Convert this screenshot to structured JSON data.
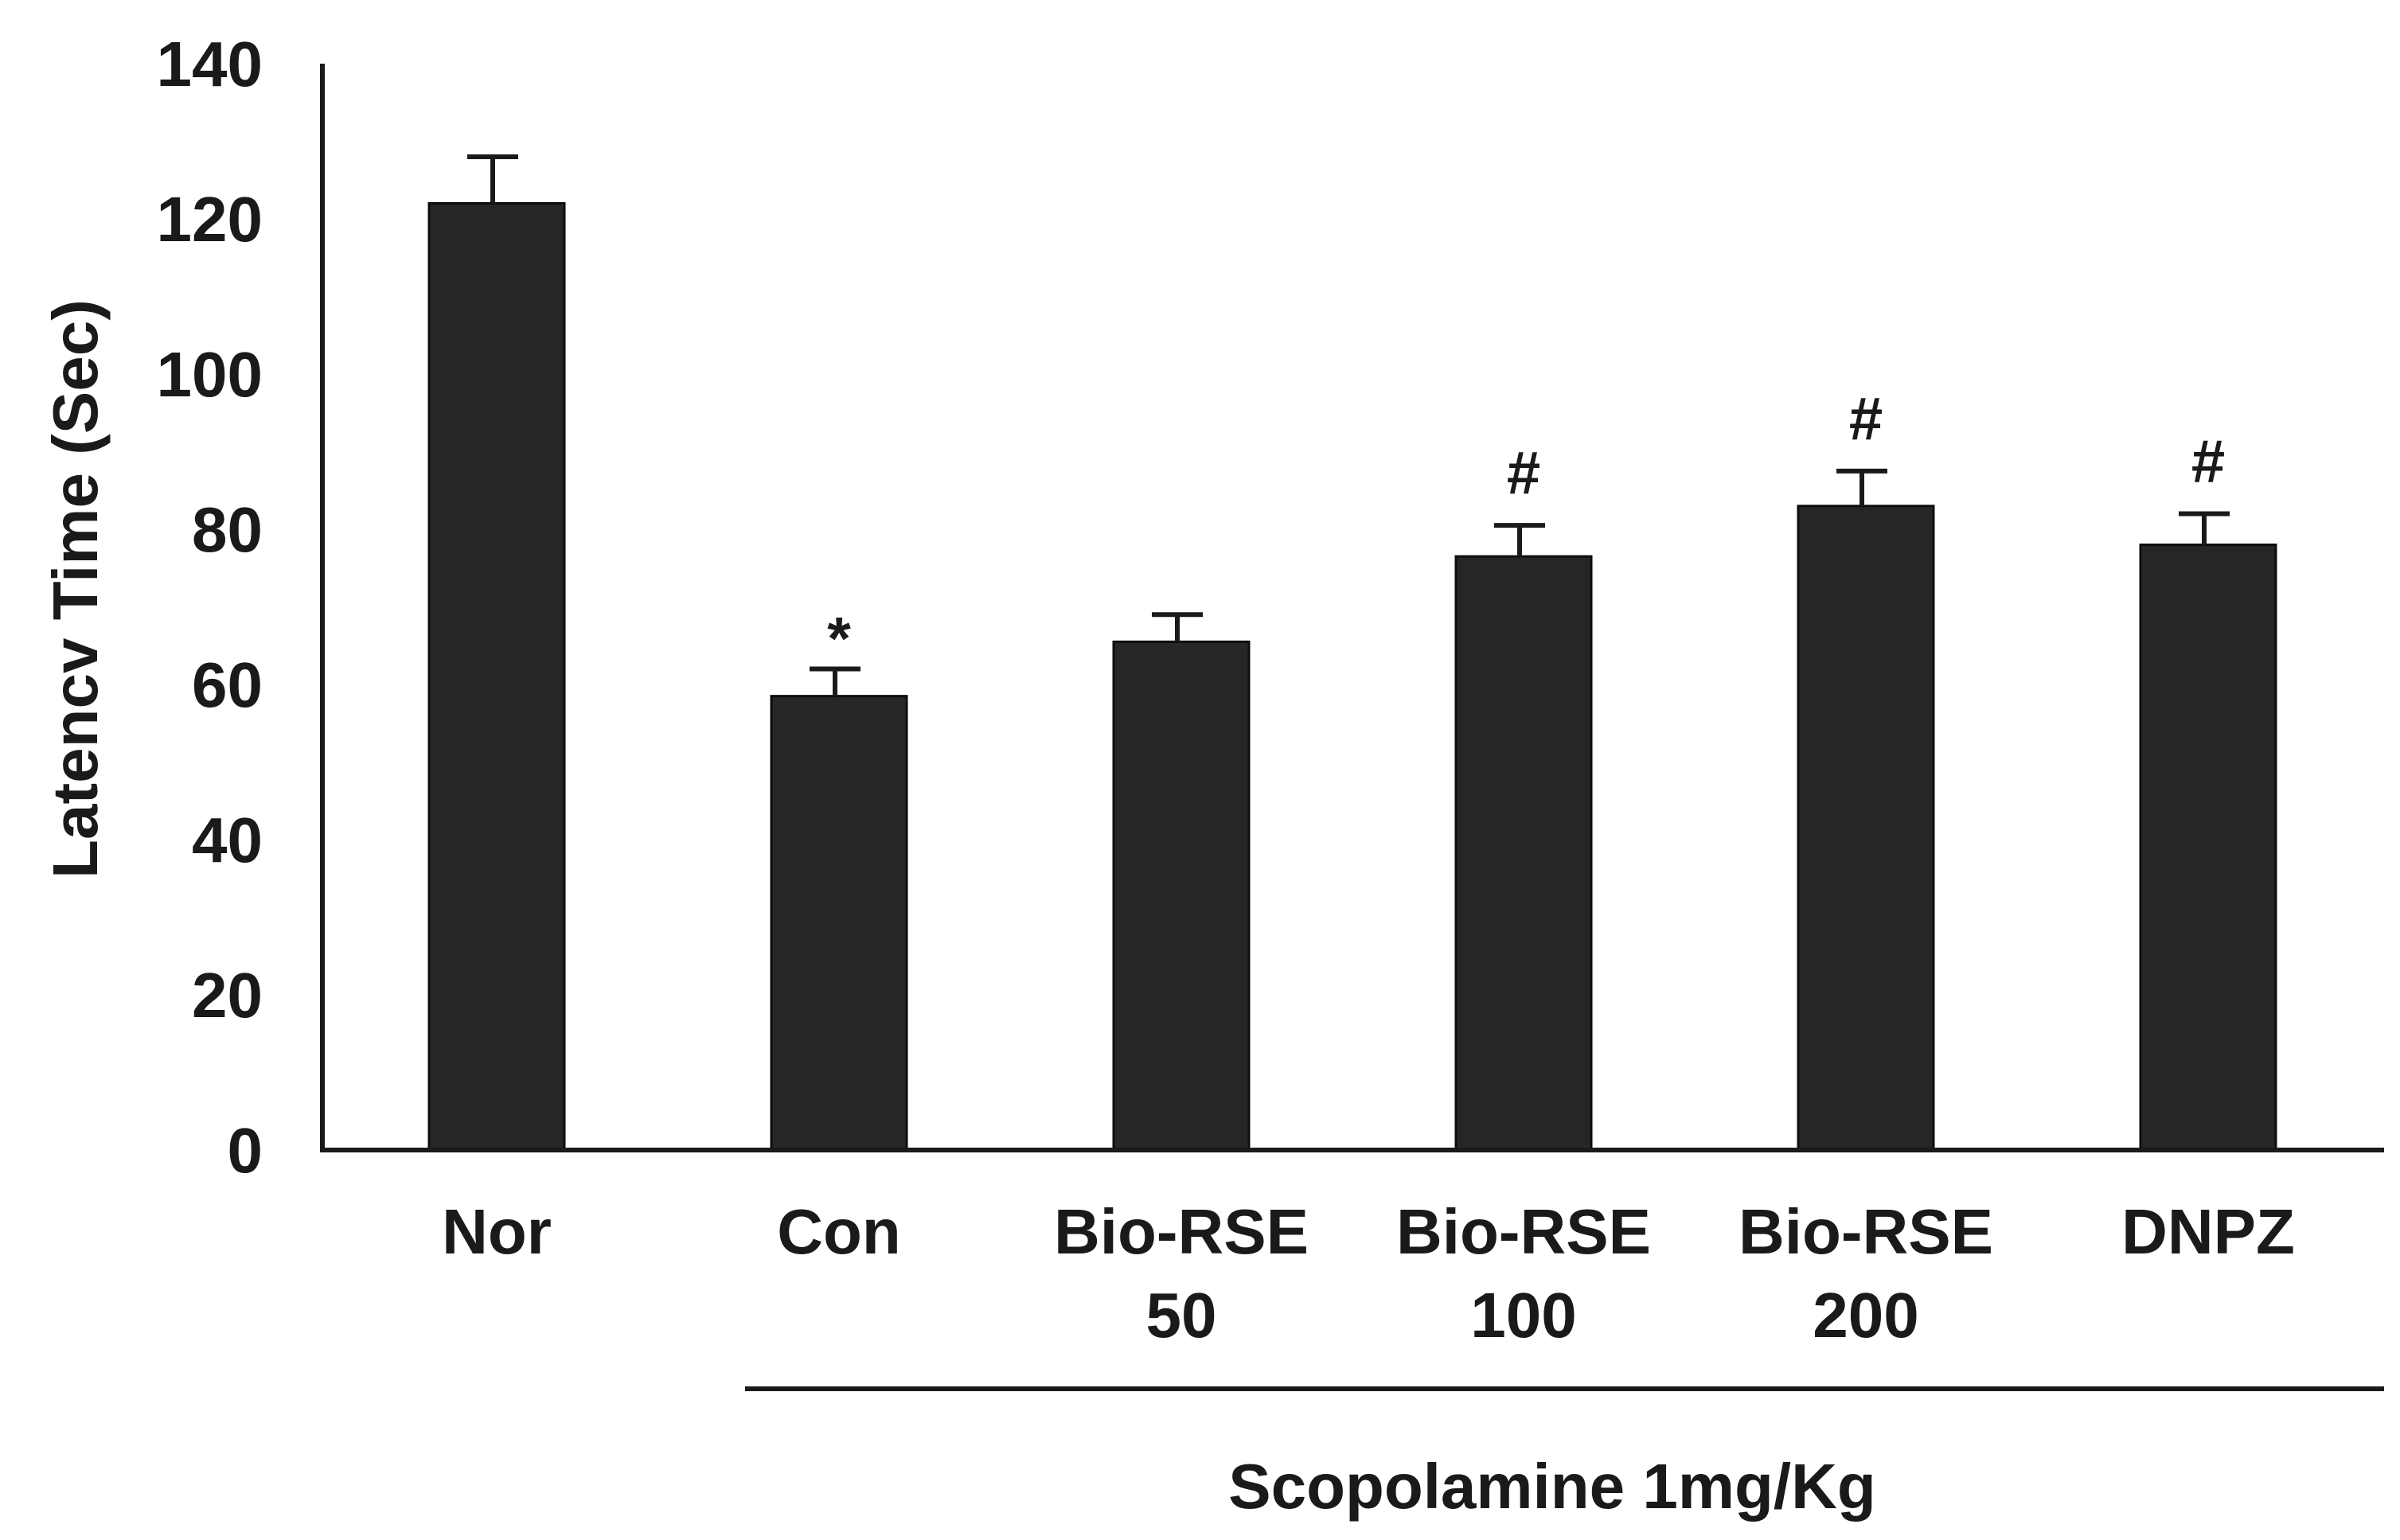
{
  "chart_data": {
    "type": "bar",
    "title": "",
    "xlabel": "",
    "ylabel": "Latencv Time (Sec)",
    "ylim": [
      0,
      140
    ],
    "yticks": [
      0,
      20,
      40,
      60,
      80,
      100,
      120,
      140
    ],
    "grid": false,
    "bar_color": "#262626",
    "categories": [
      [
        "Nor"
      ],
      [
        "Con"
      ],
      [
        "Bio-RSE",
        "50"
      ],
      [
        "Bio-RSE",
        "100"
      ],
      [
        "Bio-RSE",
        "200"
      ],
      [
        "DNPZ"
      ]
    ],
    "values": [
      122,
      58.5,
      65.5,
      76.5,
      83,
      78
    ],
    "errors": [
      6,
      3.5,
      3.5,
      4,
      4.5,
      4
    ],
    "annotations": [
      "",
      "*",
      "",
      "#",
      "#",
      "#"
    ],
    "group_label": {
      "text": "Scopolamine 1mg/Kg",
      "from_index": 1,
      "to_index": 5
    }
  }
}
